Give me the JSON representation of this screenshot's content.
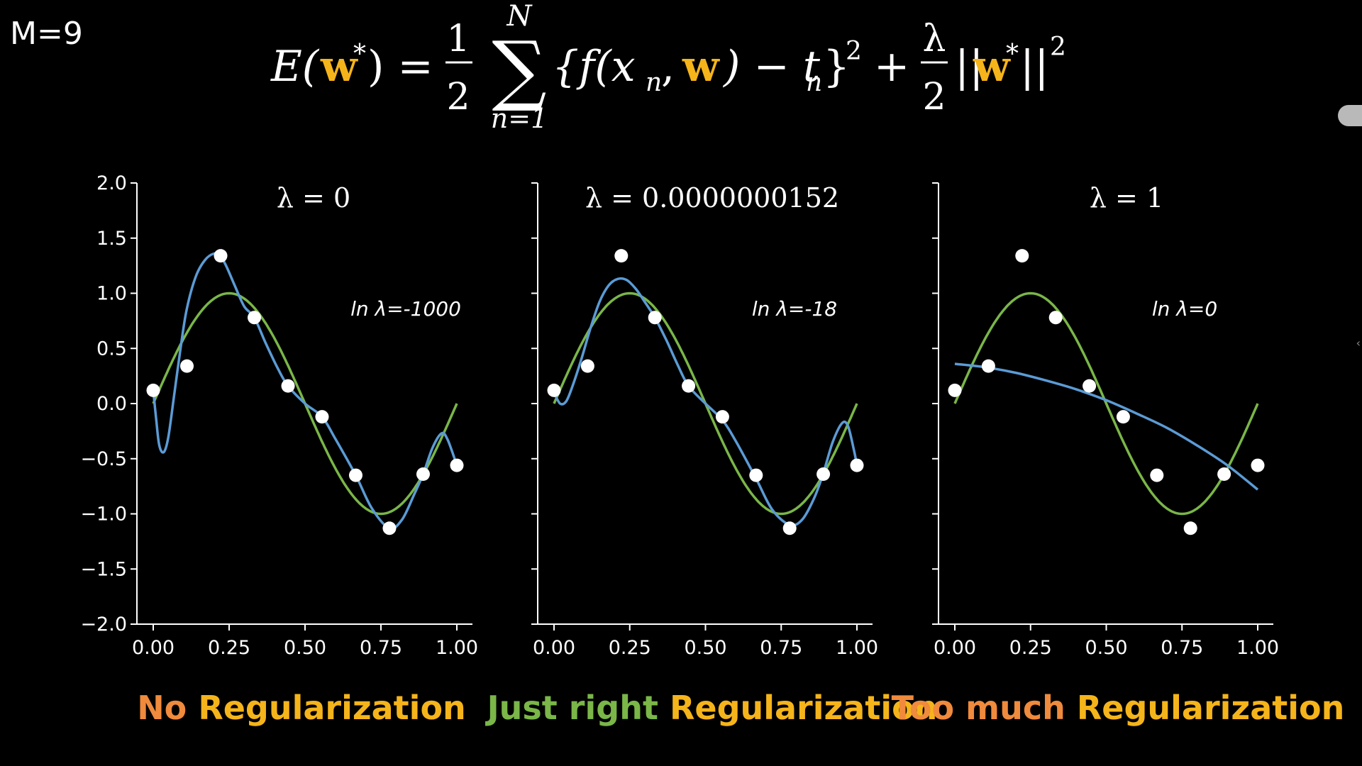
{
  "header": {
    "m_label": "M=9",
    "equation": {
      "lhs_E": "E(",
      "lhs_w": "w",
      "lhs_star": "*",
      "lhs_close": ") =",
      "half_num": "1",
      "half_den": "2",
      "sum_top": "N",
      "sum_bottom": "n=1",
      "body_open": "{f(x",
      "body_n": "n",
      "body_comma": ", ",
      "body_w": "w",
      "body_rest": ") − t",
      "body_tn": "n",
      "body_close": "}",
      "body_sq": "2",
      "plus": "+",
      "lam_num": "λ",
      "lam_den": "2",
      "norm_open": "||",
      "norm_w": "w",
      "norm_star": "*",
      "norm_close": "||",
      "norm_sq": "2"
    }
  },
  "colors": {
    "fit": "#5b9bd5",
    "true_curve": "#7ab648",
    "points": "#ffffff",
    "axis": "#ffffff",
    "caption_orange": "#f08a3c",
    "caption_yellow": "#f5b41a",
    "caption_green": "#7ab648"
  },
  "chart_data": [
    {
      "type": "line",
      "title": "λ = 0",
      "annotation": "ln λ=-1000",
      "caption_prefix": "No",
      "caption_suffix": "Regularization",
      "caption_prefix_color": "#f08a3c",
      "xlim": [
        0,
        1
      ],
      "ylim": [
        -2,
        2
      ],
      "xticks": [
        "0.00",
        "0.25",
        "0.50",
        "0.75",
        "1.00"
      ],
      "yticks": [
        "2.0",
        "1.5",
        "1.0",
        "0.5",
        "0.0",
        "−0.5",
        "−1.0",
        "−1.5",
        "−2.0"
      ],
      "points": {
        "x": [
          0.0,
          0.111,
          0.222,
          0.333,
          0.444,
          0.556,
          0.667,
          0.778,
          0.889,
          1.0
        ],
        "y": [
          0.12,
          0.34,
          1.34,
          0.78,
          0.16,
          -0.12,
          -0.65,
          -1.13,
          -0.64,
          -0.56
        ]
      },
      "fit": {
        "x": [
          0.0,
          0.01,
          0.02,
          0.035,
          0.05,
          0.07,
          0.09,
          0.11,
          0.14,
          0.17,
          0.2,
          0.22,
          0.24,
          0.27,
          0.3,
          0.333,
          0.37,
          0.41,
          0.444,
          0.5,
          0.556,
          0.6,
          0.667,
          0.72,
          0.778,
          0.82,
          0.86,
          0.889,
          0.92,
          0.95,
          0.97,
          1.0
        ],
        "y": [
          0.12,
          -0.15,
          -0.38,
          -0.44,
          -0.3,
          0.1,
          0.5,
          0.85,
          1.15,
          1.3,
          1.36,
          1.34,
          1.25,
          1.06,
          0.88,
          0.78,
          0.55,
          0.32,
          0.16,
          0.0,
          -0.12,
          -0.32,
          -0.65,
          -0.95,
          -1.13,
          -1.05,
          -0.82,
          -0.64,
          -0.4,
          -0.27,
          -0.33,
          -0.56
        ]
      },
      "true_curve": {
        "type": "sin",
        "amplitude": 1,
        "x_range": [
          0,
          1
        ]
      }
    },
    {
      "type": "line",
      "title": "λ = 0.0000000152",
      "annotation": "ln λ=-18",
      "caption_prefix": "Just right",
      "caption_suffix": "Regularization",
      "caption_prefix_color": "#7ab648",
      "xlim": [
        0,
        1
      ],
      "ylim": [
        -2,
        2
      ],
      "xticks": [
        "0.00",
        "0.25",
        "0.50",
        "0.75",
        "1.00"
      ],
      "yticks": [],
      "points": {
        "x": [
          0.0,
          0.111,
          0.222,
          0.333,
          0.444,
          0.556,
          0.667,
          0.778,
          0.889,
          1.0
        ],
        "y": [
          0.12,
          0.34,
          1.34,
          0.78,
          0.16,
          -0.12,
          -0.65,
          -1.13,
          -0.64,
          -0.56
        ]
      },
      "fit": {
        "x": [
          0.0,
          0.02,
          0.04,
          0.06,
          0.09,
          0.12,
          0.15,
          0.18,
          0.21,
          0.24,
          0.27,
          0.3,
          0.333,
          0.37,
          0.41,
          0.444,
          0.5,
          0.556,
          0.6,
          0.667,
          0.72,
          0.778,
          0.82,
          0.86,
          0.889,
          0.92,
          0.95,
          0.97,
          0.99,
          1.0
        ],
        "y": [
          0.1,
          0.0,
          0.02,
          0.15,
          0.4,
          0.68,
          0.92,
          1.07,
          1.13,
          1.12,
          1.04,
          0.92,
          0.78,
          0.58,
          0.34,
          0.16,
          0.0,
          -0.15,
          -0.34,
          -0.68,
          -0.96,
          -1.1,
          -1.05,
          -0.85,
          -0.63,
          -0.35,
          -0.18,
          -0.2,
          -0.42,
          -0.56
        ]
      },
      "true_curve": {
        "type": "sin",
        "amplitude": 1,
        "x_range": [
          0,
          1
        ]
      }
    },
    {
      "type": "line",
      "title": "λ = 1",
      "annotation": "ln λ=0",
      "caption_prefix": "Too much",
      "caption_suffix": "Regularization",
      "caption_prefix_color": "#f08a3c",
      "xlim": [
        0,
        1
      ],
      "ylim": [
        -2,
        2
      ],
      "xticks": [
        "0.00",
        "0.25",
        "0.50",
        "0.75",
        "1.00"
      ],
      "yticks": [],
      "points": {
        "x": [
          0.0,
          0.111,
          0.222,
          0.333,
          0.444,
          0.556,
          0.667,
          0.778,
          0.889,
          1.0
        ],
        "y": [
          0.12,
          0.34,
          1.34,
          0.78,
          0.16,
          -0.12,
          -0.65,
          -1.13,
          -0.64,
          -0.56
        ]
      },
      "fit": {
        "x": [
          0.0,
          0.1,
          0.2,
          0.3,
          0.4,
          0.5,
          0.6,
          0.7,
          0.8,
          0.9,
          1.0
        ],
        "y": [
          0.36,
          0.33,
          0.28,
          0.21,
          0.13,
          0.03,
          -0.09,
          -0.22,
          -0.38,
          -0.56,
          -0.78
        ]
      },
      "true_curve": {
        "type": "sin",
        "amplitude": 1,
        "x_range": [
          0,
          1
        ]
      }
    }
  ]
}
